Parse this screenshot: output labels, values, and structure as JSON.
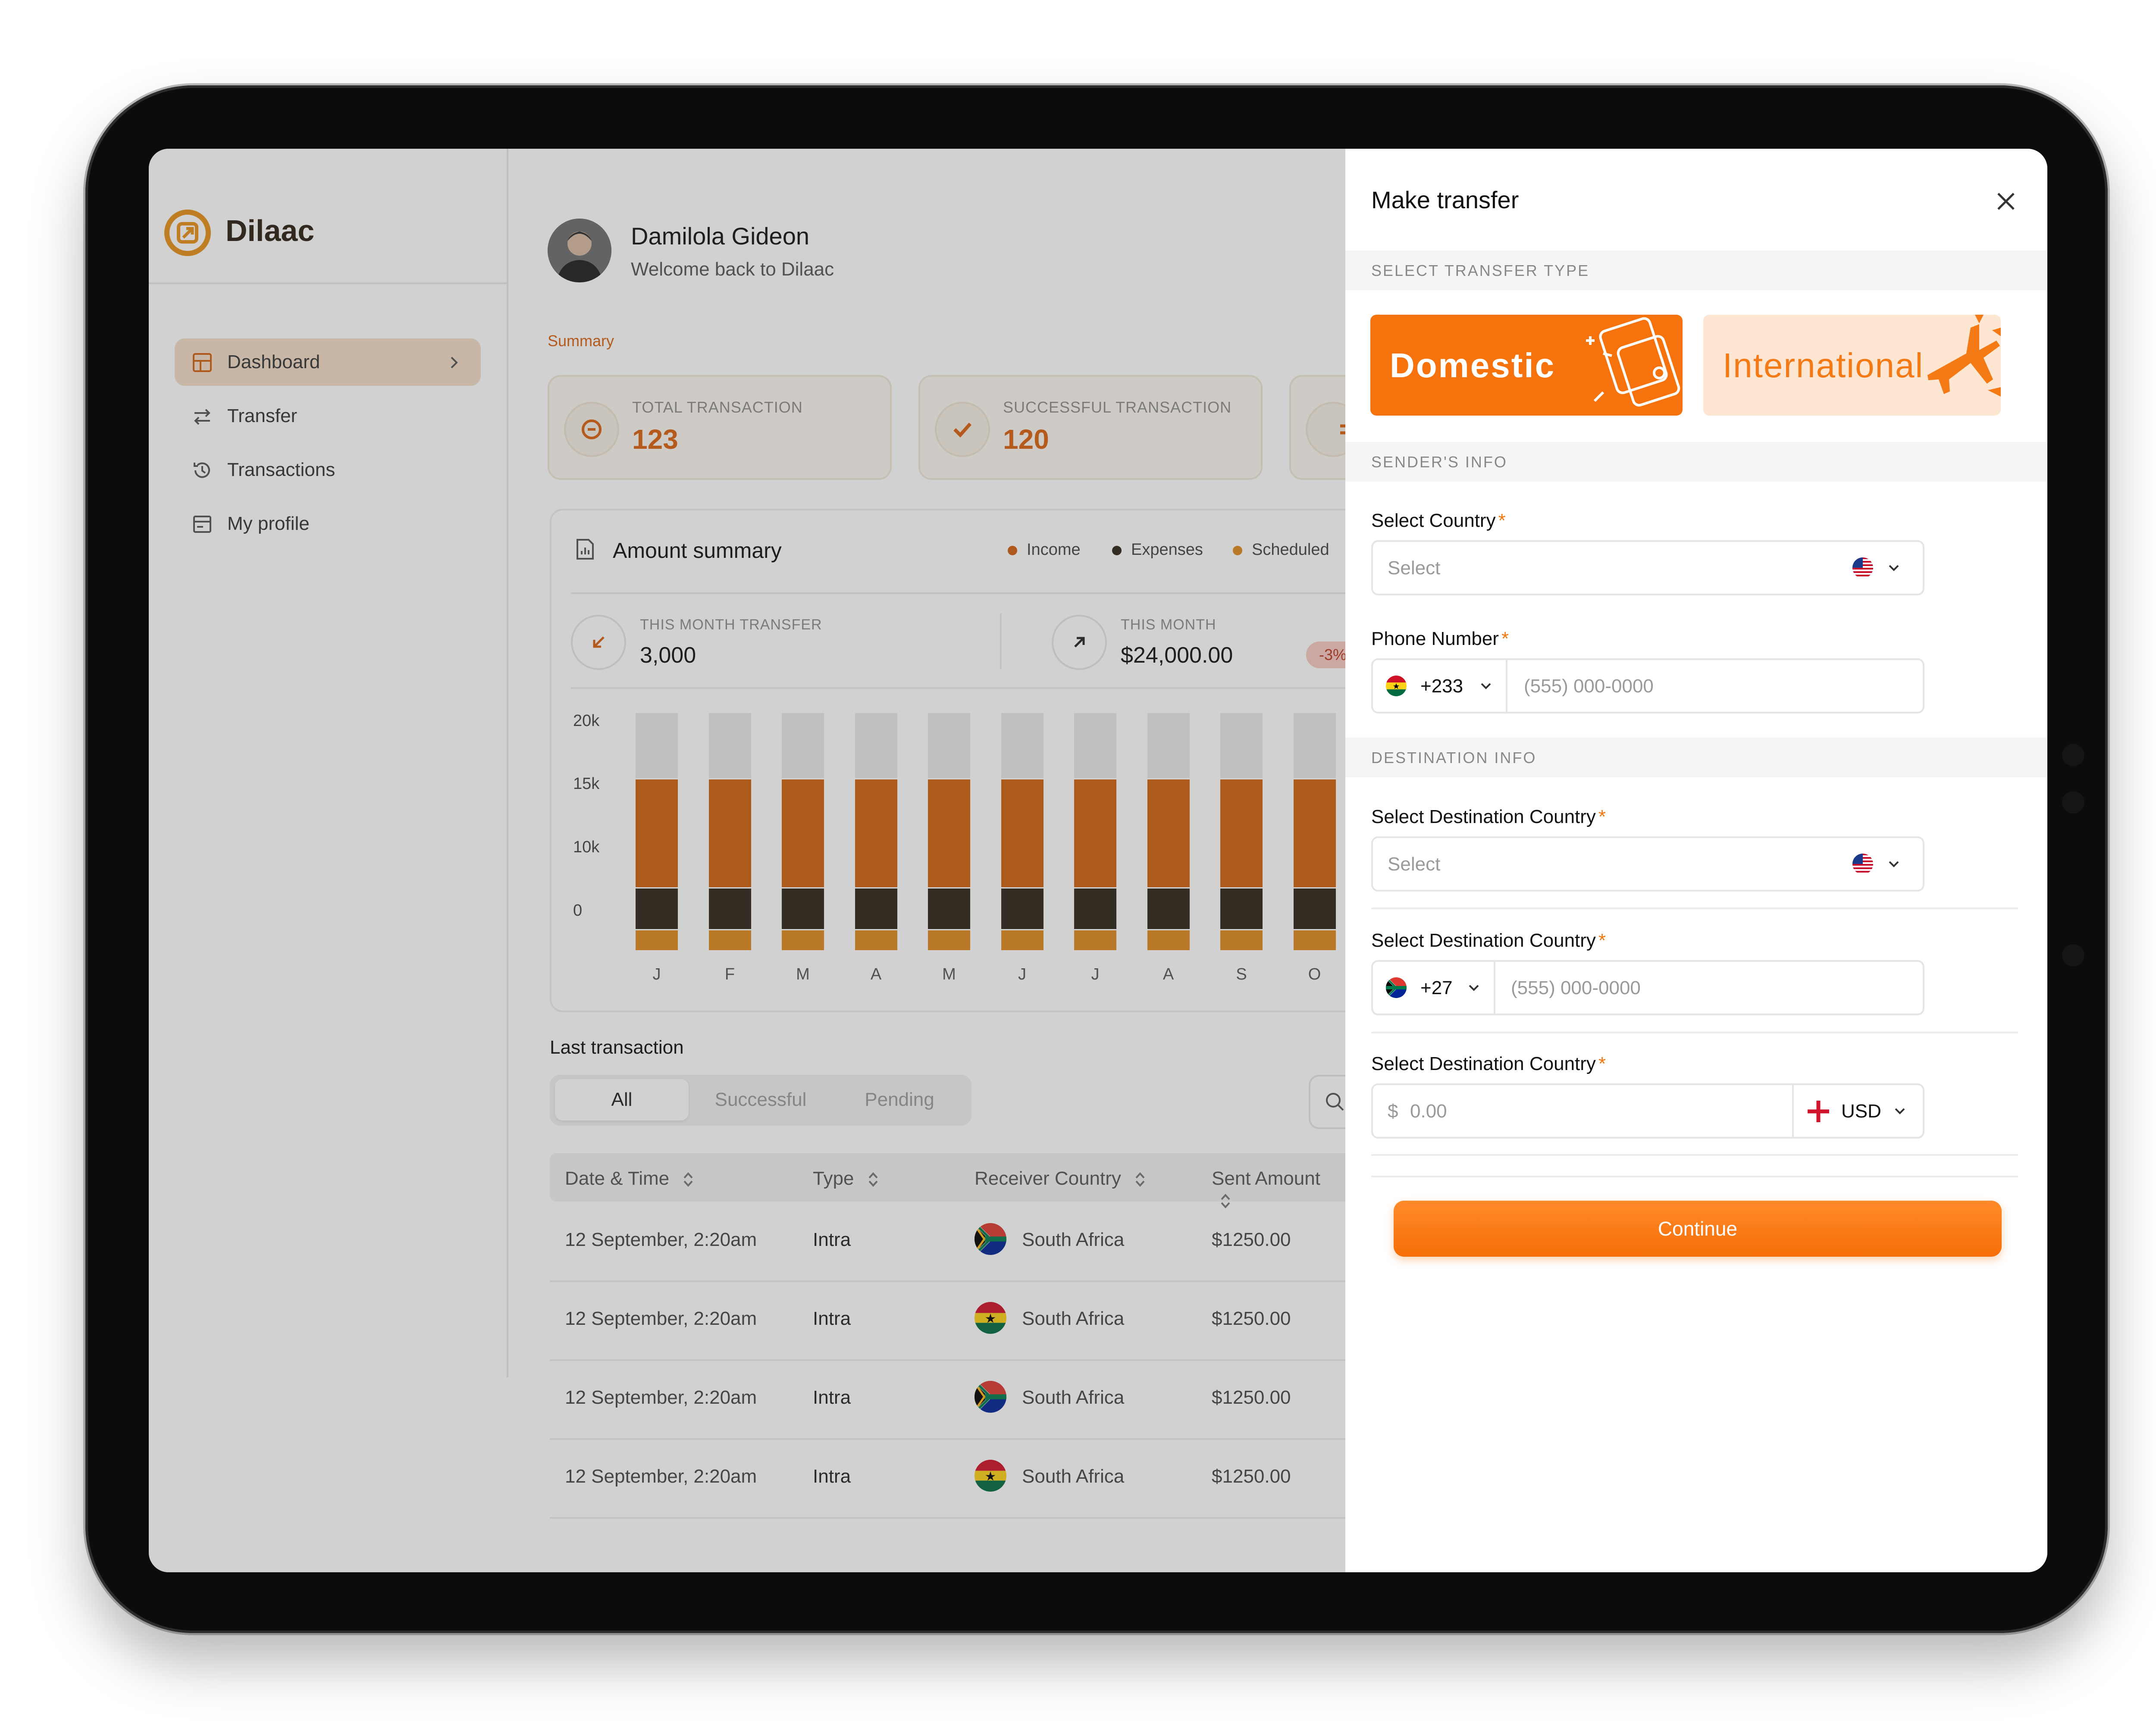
{
  "app": {
    "name": "Dilaac"
  },
  "sidebar": {
    "items": [
      {
        "label": "Dashboard",
        "icon": "grid-icon",
        "active": true
      },
      {
        "label": "Transfer",
        "icon": "arrows-swap-icon"
      },
      {
        "label": "Transactions",
        "icon": "history-icon"
      },
      {
        "label": "My profile",
        "icon": "profile-card-icon"
      }
    ]
  },
  "header": {
    "user_name": "Damilola Gideon",
    "welcome": "Welcome back to Dilaac"
  },
  "summary": {
    "label": "Summary",
    "cards": [
      {
        "label": "TOTAL TRANSACTION",
        "value": "123",
        "icon": "minus-circle-icon"
      },
      {
        "label": "SUCCESSFUL TRANSACTION",
        "value": "120",
        "icon": "check-icon"
      }
    ]
  },
  "amount_summary": {
    "title": "Amount summary",
    "legend": [
      "Income",
      "Expenses",
      "Scheduled"
    ],
    "this_month_transfer": {
      "label": "THIS MONTH TRANSFER",
      "value": "3,000"
    },
    "this_month": {
      "label": "THIS MONTH",
      "value": "$24,000.00",
      "badge": "-3%"
    }
  },
  "chart_data": {
    "type": "bar",
    "stacked": true,
    "categories": [
      "J",
      "F",
      "M",
      "A",
      "M",
      "J",
      "J",
      "A",
      "S",
      "O"
    ],
    "y_ticks": [
      "20k",
      "15k",
      "10k",
      "0"
    ],
    "ylim": [
      0,
      20000
    ],
    "series": [
      {
        "name": "Scheduled",
        "color": "#e08a1e",
        "values": [
          1800,
          1800,
          1800,
          1800,
          1800,
          1800,
          1800,
          1800,
          1800,
          1800
        ]
      },
      {
        "name": "Expenses",
        "color": "#2e2417",
        "values": [
          3500,
          3500,
          3500,
          3500,
          3500,
          3500,
          3500,
          3500,
          3500,
          3500
        ]
      },
      {
        "name": "Income",
        "color": "#d2600f",
        "values": [
          9200,
          9200,
          9200,
          9200,
          9200,
          9200,
          9200,
          9200,
          9200,
          9200
        ]
      },
      {
        "color": "#e9e9e9",
        "values": [
          5500,
          5500,
          5500,
          5500,
          5500,
          5500,
          5500,
          5500,
          5500,
          5500
        ]
      }
    ],
    "grid": false,
    "legend_position": "top-right"
  },
  "last_transaction": {
    "title": "Last transaction",
    "tabs": [
      "All",
      "Successful",
      "Pending"
    ],
    "columns": [
      "Date & Time",
      "Type",
      "Receiver Country",
      "Sent Amount"
    ],
    "rows": [
      {
        "date": "12 September, 2:20am",
        "type": "Intra",
        "country": "South Africa",
        "flag": "za",
        "amount": "$1250.00"
      },
      {
        "date": "12 September, 2:20am",
        "type": "Intra",
        "country": "South Africa",
        "flag": "gh",
        "amount": "$1250.00"
      },
      {
        "date": "12 September, 2:20am",
        "type": "Intra",
        "country": "South Africa",
        "flag": "za",
        "amount": "$1250.00"
      },
      {
        "date": "12 September, 2:20am",
        "type": "Intra",
        "country": "South Africa",
        "flag": "gh",
        "amount": "$1250.00"
      }
    ]
  },
  "panel": {
    "title": "Make transfer",
    "sections": {
      "type": "SELECT TRANSFER TYPE",
      "sender": "SENDER'S INFO",
      "destination": "DESTINATION INFO"
    },
    "transfer_types": [
      "Domestic",
      "International"
    ],
    "sender": {
      "country_label": "Select Country",
      "country_placeholder": "Select",
      "phone_label": "Phone Number",
      "phone_code": "+233",
      "phone_placeholder": "(555) 000-0000"
    },
    "destination": {
      "country_label": "Select Destination Country",
      "country_placeholder": "Select",
      "phone_label": "Select Destination Country",
      "phone_code": "+27",
      "phone_placeholder": "(555) 000-0000",
      "amount_label": "Select Destination Country",
      "currency_symbol": "$",
      "amount_placeholder": "0.00",
      "currency": "USD"
    },
    "continue_label": "Continue"
  },
  "colors": {
    "accent": "#f07a12",
    "brand_dark": "#2a1e12",
    "active_nav": "#f3dcc7"
  }
}
